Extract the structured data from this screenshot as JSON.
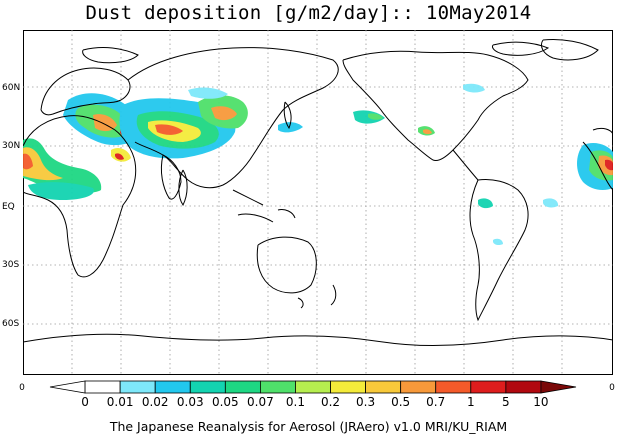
{
  "title": "Dust deposition [g/m2/day]:: 10May2014",
  "latitude_labels": [
    "60N",
    "30N",
    "EQ",
    "30S",
    "60S"
  ],
  "colorbar": {
    "left_end_label": "0",
    "right_end_label": "0",
    "tick_labels": [
      "0",
      "0.01",
      "0.02",
      "0.03",
      "0.05",
      "0.07",
      "0.1",
      "0.2",
      "0.3",
      "0.5",
      "0.7",
      "1",
      "5",
      "10"
    ],
    "colors": [
      "#ffffff",
      "#ffffff",
      "#7ee8fa",
      "#22c8ee",
      "#13d3b0",
      "#1ed783",
      "#4fe06a",
      "#b6ee4f",
      "#f4eb3a",
      "#f8c93a",
      "#f7993a",
      "#f45a2a",
      "#de1d1d",
      "#b1080f",
      "#7a0808"
    ]
  },
  "footer": "The Japanese Reanalysis for Aerosol (JRAero) v1.0 MRI/KU_RIAM"
}
